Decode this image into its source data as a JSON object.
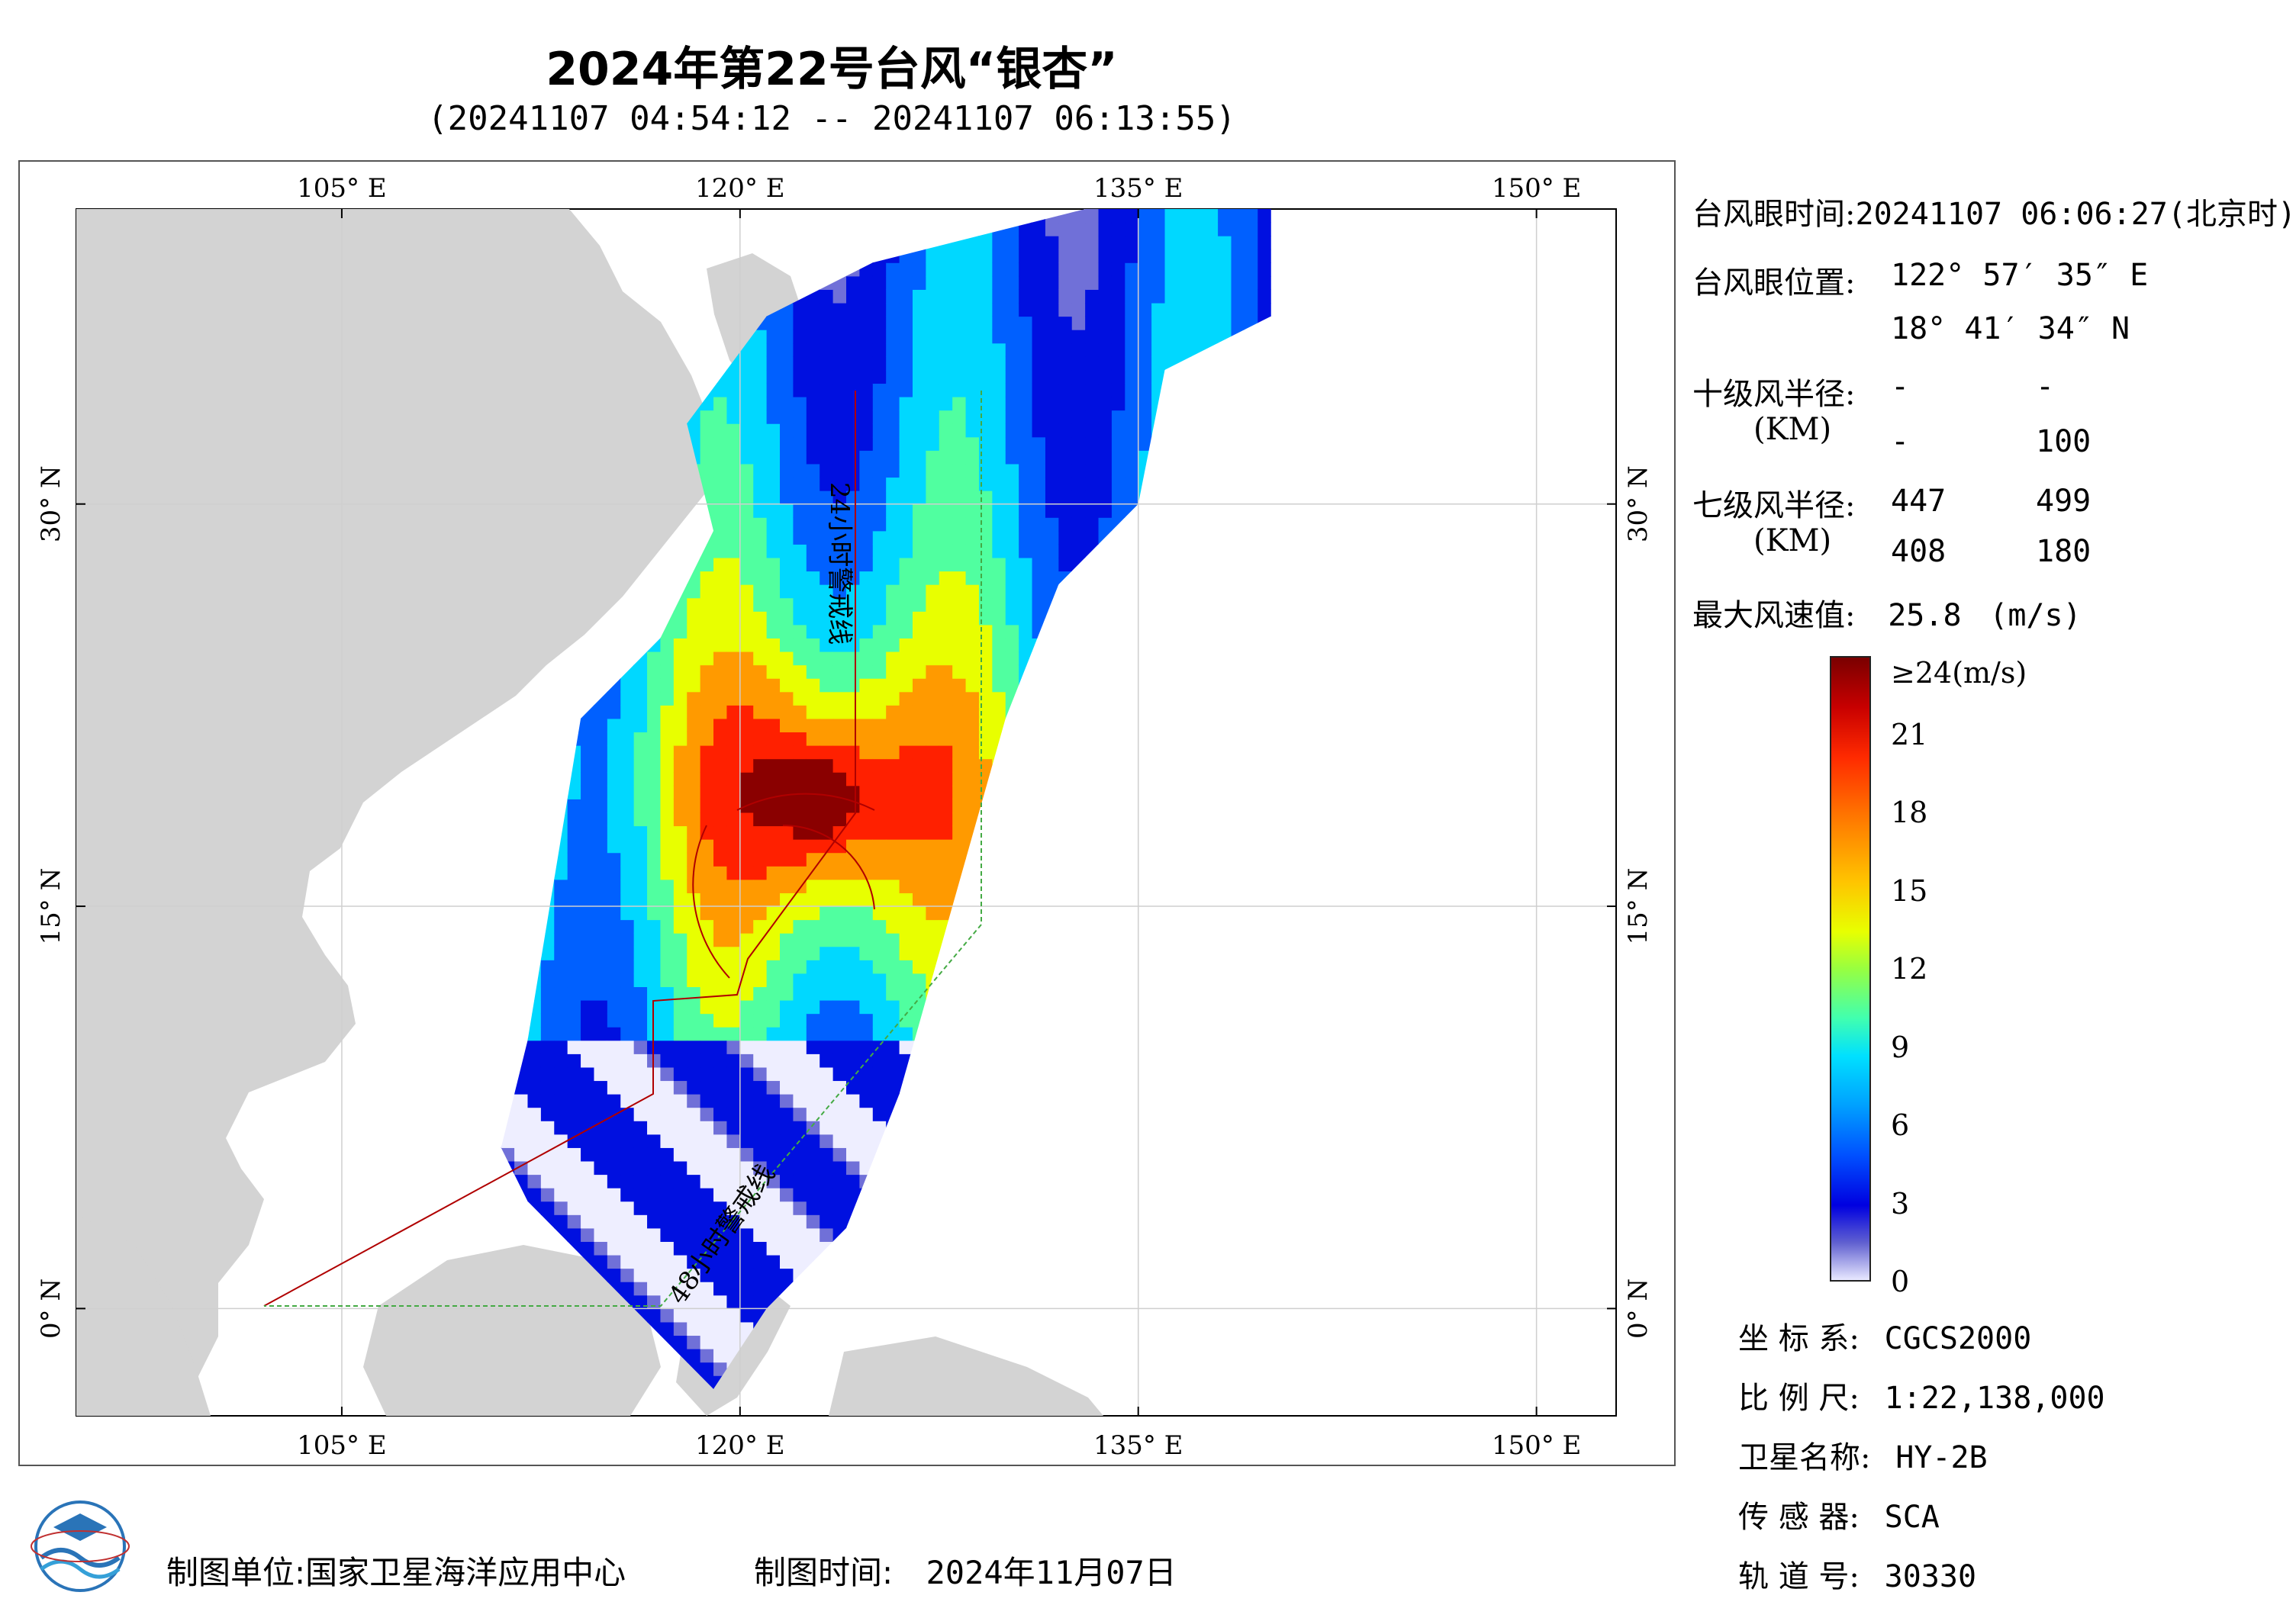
{
  "title": "2024年第22号台风“银杏”",
  "subtitle": "(20241107 04:54:12 -- 20241107 06:13:55)",
  "map": {
    "lon_range": [
      95,
      153
    ],
    "lat_range": [
      -4,
      41
    ],
    "lon_ticks": [
      105,
      120,
      135,
      150
    ],
    "lat_ticks": [
      0,
      15,
      30
    ],
    "lon_tick_labels": [
      "105° E",
      "120° E",
      "135° E",
      "150° E"
    ],
    "lat_tick_labels": [
      "0° N",
      "15° N",
      "30° N"
    ],
    "warning_line_24h_label": "24小时警戒线",
    "warning_line_48h_label": "48小时警戒线",
    "land_color": "#d3d3d3",
    "sea_color": "#ffffff",
    "line_24h_color": "#b00000",
    "line_48h_color": "#44aa44"
  },
  "info": {
    "eye_time_label": "台风眼时间:",
    "eye_time_value": "20241107 06:06:27(北京时)",
    "eye_pos_label": "台风眼位置:",
    "eye_lon": "122° 57′ 35″ E",
    "eye_lat": "18° 41′ 34″ N",
    "r10_label": "十级风半径:",
    "r10_unit": "(KM)",
    "r10_values": [
      "-",
      "-",
      "-",
      "100"
    ],
    "r7_label": "七级风半径:",
    "r7_unit": "(KM)",
    "r7_values": [
      "447",
      "499",
      "408",
      "180"
    ],
    "max_wind_label": "最大风速值:",
    "max_wind_value": "25.8",
    "max_wind_unit": "(m/s)"
  },
  "colorbar": {
    "ticks": [
      "≥24(m/s)",
      "21",
      "18",
      "15",
      "12",
      "9",
      "6",
      "3",
      "0"
    ]
  },
  "meta": {
    "crs_label": "坐 标 系:",
    "crs_value": "CGCS2000",
    "scale_label": "比 例 尺:",
    "scale_value": "1:22,138,000",
    "satellite_label": "卫星名称:",
    "satellite_value": "HY-2B",
    "sensor_label": "传 感 器:",
    "sensor_value": "SCA",
    "orbit_label": "轨 道 号:",
    "orbit_value": "30330"
  },
  "footer": {
    "producer_label": "制图单位:",
    "producer_value": "国家卫星海洋应用中心",
    "date_label": "制图时间:",
    "date_value": "2024年11月07日"
  }
}
